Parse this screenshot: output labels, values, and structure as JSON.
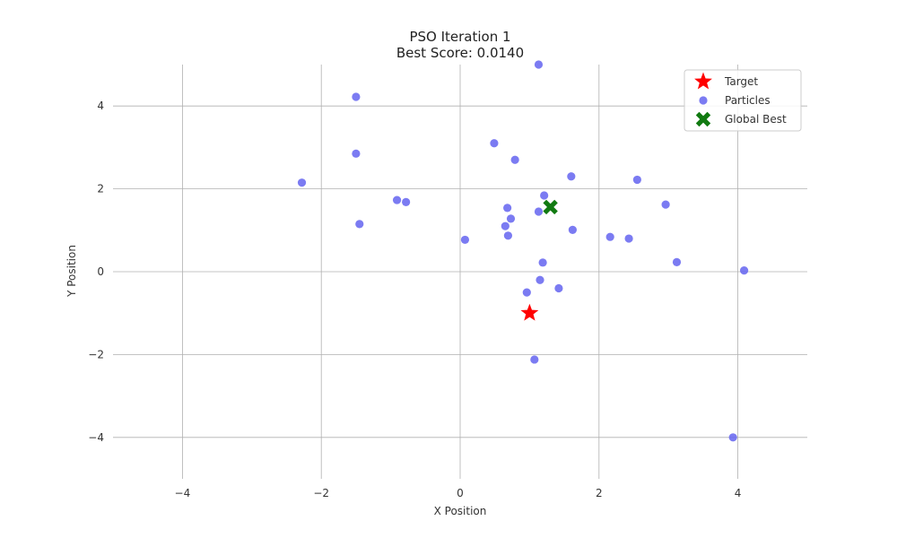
{
  "chart_data": {
    "type": "scatter",
    "title": "PSO Iteration 1",
    "subtitle": "Best Score: 0.0140",
    "xlabel": "X Position",
    "ylabel": "Y Position",
    "xlim": [
      -5,
      5
    ],
    "ylim": [
      -5,
      5
    ],
    "xticks": [
      -4,
      -2,
      0,
      2,
      4
    ],
    "yticks": [
      -4,
      -2,
      0,
      2,
      4
    ],
    "xtick_labels": [
      "−4",
      "−2",
      "0",
      "2",
      "4"
    ],
    "ytick_labels": [
      "−4",
      "−2",
      "0",
      "2",
      "4"
    ],
    "grid": true,
    "legend_position": "top-right",
    "series": [
      {
        "name": "Target",
        "marker": "star",
        "color": "#ff0000",
        "points": [
          [
            1.0,
            -1.0
          ]
        ]
      },
      {
        "name": "Particles",
        "marker": "circle",
        "color": "#6464f0",
        "points": [
          [
            1.13,
            5.0
          ],
          [
            -1.5,
            4.22
          ],
          [
            -1.5,
            2.85
          ],
          [
            -2.28,
            2.15
          ],
          [
            0.49,
            3.1
          ],
          [
            0.79,
            2.7
          ],
          [
            1.6,
            2.3
          ],
          [
            2.55,
            2.22
          ],
          [
            1.21,
            1.84
          ],
          [
            -0.91,
            1.73
          ],
          [
            -0.78,
            1.68
          ],
          [
            0.68,
            1.54
          ],
          [
            1.13,
            1.45
          ],
          [
            0.73,
            1.28
          ],
          [
            2.96,
            1.62
          ],
          [
            -1.45,
            1.15
          ],
          [
            0.65,
            1.1
          ],
          [
            1.62,
            1.01
          ],
          [
            0.69,
            0.87
          ],
          [
            2.16,
            0.84
          ],
          [
            2.43,
            0.8
          ],
          [
            0.07,
            0.77
          ],
          [
            1.19,
            0.22
          ],
          [
            3.12,
            0.23
          ],
          [
            4.09,
            0.03
          ],
          [
            1.15,
            -0.2
          ],
          [
            1.42,
            -0.4
          ],
          [
            0.96,
            -0.5
          ],
          [
            1.07,
            -2.12
          ],
          [
            3.93,
            -4.0
          ]
        ]
      },
      {
        "name": "Global Best",
        "marker": "x",
        "color": "#117a11",
        "points": [
          [
            1.3,
            1.56
          ]
        ]
      }
    ]
  }
}
